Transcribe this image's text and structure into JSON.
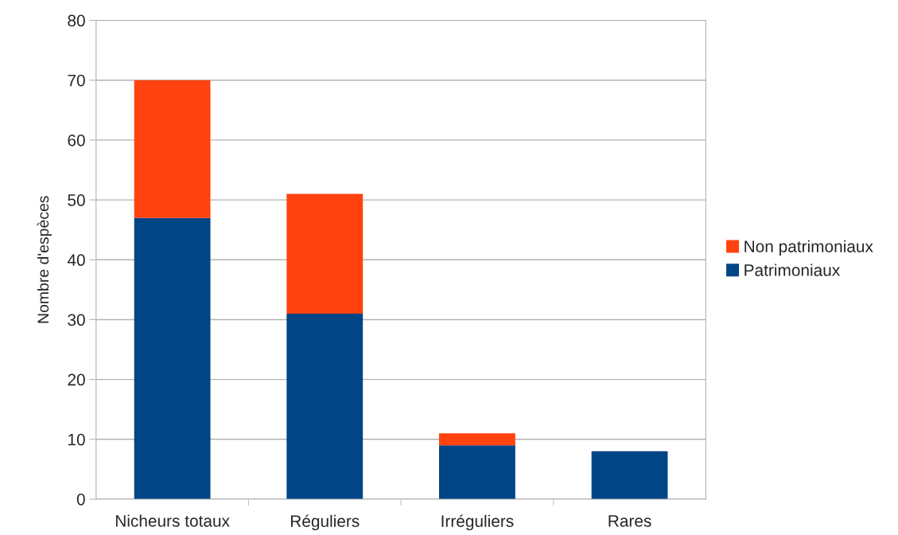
{
  "chart_data": {
    "type": "bar",
    "stacked": true,
    "ylabel": "Nombre d'espèces",
    "categories": [
      "Nicheurs totaux",
      "Réguliers",
      "Irréguliers",
      "Rares"
    ],
    "series": [
      {
        "name": "Patrimoniaux",
        "color": "#004586",
        "values": [
          47,
          31,
          9,
          8
        ]
      },
      {
        "name": "Non patrimoniaux",
        "color": "#ff420e",
        "values": [
          23,
          20,
          2,
          null
        ]
      }
    ],
    "ylim": [
      0,
      80
    ],
    "yticks": [
      0,
      10,
      20,
      30,
      40,
      50,
      60,
      70,
      80
    ],
    "grid": "y",
    "legend": "right"
  }
}
